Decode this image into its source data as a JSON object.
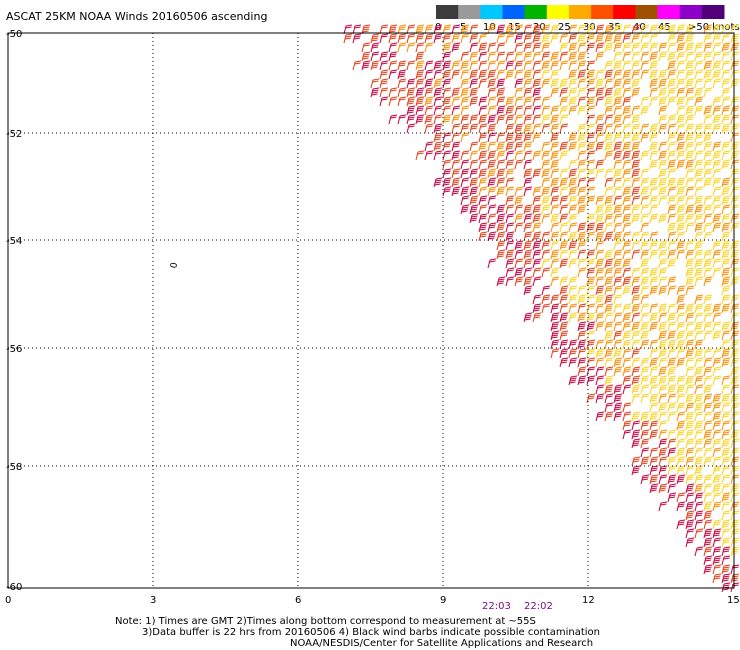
{
  "title": "ASCAT 25KM NOAA Winds 20160506 ascending",
  "legend": {
    "labels": [
      "0",
      "5",
      "10",
      "15",
      "20",
      "25",
      "30",
      "35",
      "40",
      "45",
      ">50 knots"
    ],
    "colors": [
      "#3c3c3c",
      "#9a9a9a",
      "#00c8ff",
      "#0064ff",
      "#00b400",
      "#ffff00",
      "#ffaa00",
      "#ff5000",
      "#ff0000",
      "#a05000",
      "#ff00ff",
      "#8c00c8",
      "#500078"
    ]
  },
  "lat_labels": [
    "-50",
    "-52",
    "-54",
    "-56",
    "-58",
    "-60"
  ],
  "lon_labels": [
    "0",
    "3",
    "6",
    "9",
    "12",
    "15"
  ],
  "pass_times": [
    "22:03",
    "22:02"
  ],
  "island_marker": "0",
  "notes": {
    "line1": "Note: 1) Times are GMT 2)Times along bottom correspond to measurement at ~55S",
    "line2": "3)Data buffer is 22 hrs from 20160506 4) Black wind barbs indicate possible contamination",
    "line3": "NOAA/NESDIS/Center for Satellite Applications and Research"
  },
  "wind_colors": {
    "25-30kt": "#ffd21e",
    "30-35kt": "#ff8c00",
    "35-40kt": "#e63c14",
    "40-45kt": "#c8003c"
  }
}
